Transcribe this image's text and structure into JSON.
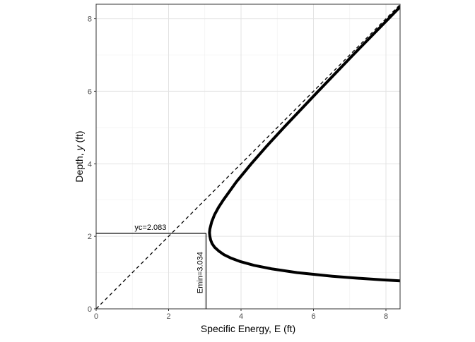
{
  "chart_data": {
    "type": "line",
    "title": "",
    "xlabel": "Specific Energy, E (ft)",
    "ylabel_parts": [
      "Depth, ",
      "y",
      " (ft)"
    ],
    "xlim": [
      0,
      8.39
    ],
    "ylim": [
      0,
      8.4
    ],
    "xticks": [
      0,
      2,
      4,
      6,
      8
    ],
    "yticks": [
      0,
      2,
      4,
      6,
      8
    ],
    "grid": true,
    "series": [
      {
        "style": "solid-thick",
        "color": "#000000",
        "points": [
          [
            8.64,
            0.76
          ],
          [
            8.26,
            0.78
          ],
          [
            7.91,
            0.8
          ],
          [
            7.15,
            0.85
          ],
          [
            6.52,
            0.9
          ],
          [
            5.55,
            1.0
          ],
          [
            4.86,
            1.1
          ],
          [
            4.36,
            1.2
          ],
          [
            3.99,
            1.3
          ],
          [
            3.72,
            1.4
          ],
          [
            3.52,
            1.5
          ],
          [
            3.38,
            1.6
          ],
          [
            3.27,
            1.7
          ],
          [
            3.2,
            1.8
          ],
          [
            3.16,
            1.9
          ],
          [
            3.14,
            2.0
          ],
          [
            3.13,
            2.1
          ],
          [
            3.14,
            2.2
          ],
          [
            3.19,
            2.4
          ],
          [
            3.27,
            2.6
          ],
          [
            3.38,
            2.8
          ],
          [
            3.51,
            3.0
          ],
          [
            3.87,
            3.5
          ],
          [
            4.28,
            4.0
          ],
          [
            4.72,
            4.5
          ],
          [
            5.18,
            5.0
          ],
          [
            6.13,
            6.0
          ],
          [
            7.09,
            7.0
          ],
          [
            8.07,
            8.0
          ],
          [
            8.46,
            8.4
          ]
        ]
      },
      {
        "style": "dashed",
        "color": "#000000",
        "points": [
          [
            0,
            0
          ],
          [
            8.4,
            8.4
          ]
        ]
      }
    ],
    "annotations": {
      "yc": {
        "value": 2.083,
        "label": "yc=2.083"
      },
      "emin": {
        "value": 3.034,
        "label": "Emin=3.034"
      }
    }
  }
}
